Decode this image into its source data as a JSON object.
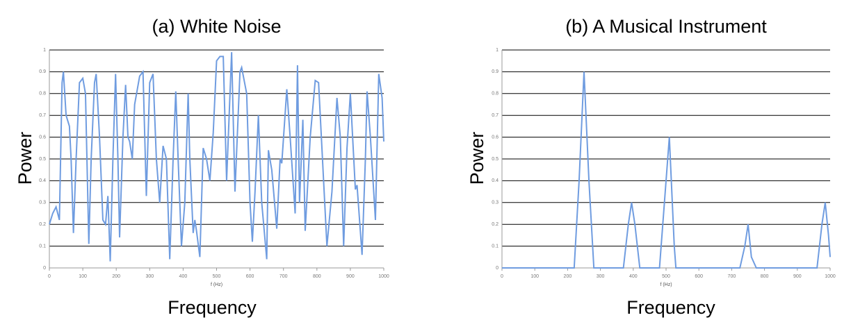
{
  "chart_data": [
    {
      "type": "line",
      "title": "(a)  White Noise",
      "ylabel": "Power",
      "xlabel": "f (Hz)",
      "caption": "Frequency",
      "color": "#6f9ce0",
      "grid": true,
      "xlim": [
        0,
        1000
      ],
      "ylim": [
        0,
        1
      ],
      "xticks": [
        0,
        100,
        200,
        300,
        400,
        500,
        600,
        700,
        800,
        900,
        1000
      ],
      "yticks": [
        0,
        0.1,
        0.2,
        0.3,
        0.4,
        0.5,
        0.6,
        0.7,
        0.8,
        0.9,
        1
      ],
      "x": [
        0,
        10,
        20,
        30,
        38,
        42,
        50,
        60,
        65,
        72,
        80,
        90,
        100,
        108,
        118,
        125,
        135,
        140,
        150,
        160,
        168,
        175,
        182,
        190,
        198,
        205,
        210,
        220,
        228,
        235,
        240,
        248,
        255,
        270,
        280,
        290,
        300,
        310,
        320,
        330,
        340,
        350,
        360,
        370,
        378,
        385,
        395,
        405,
        415,
        420,
        430,
        435,
        440,
        450,
        460,
        470,
        480,
        490,
        500,
        510,
        520,
        530,
        545,
        555,
        570,
        575,
        590,
        600,
        607,
        615,
        625,
        635,
        650,
        655,
        665,
        680,
        690,
        695,
        710,
        720,
        735,
        742,
        748,
        758,
        765,
        780,
        795,
        805,
        820,
        830,
        845,
        860,
        870,
        880,
        890,
        900,
        915,
        920,
        935,
        945,
        950,
        960,
        975,
        985,
        995,
        1000
      ],
      "values": [
        0.2,
        0.25,
        0.28,
        0.22,
        0.85,
        0.9,
        0.7,
        0.65,
        0.5,
        0.16,
        0.5,
        0.85,
        0.87,
        0.8,
        0.11,
        0.5,
        0.85,
        0.89,
        0.6,
        0.22,
        0.2,
        0.33,
        0.03,
        0.5,
        0.89,
        0.5,
        0.14,
        0.6,
        0.84,
        0.6,
        0.58,
        0.5,
        0.75,
        0.88,
        0.9,
        0.33,
        0.85,
        0.89,
        0.5,
        0.3,
        0.56,
        0.5,
        0.04,
        0.5,
        0.81,
        0.5,
        0.1,
        0.3,
        0.8,
        0.5,
        0.16,
        0.22,
        0.17,
        0.05,
        0.55,
        0.5,
        0.4,
        0.62,
        0.95,
        0.97,
        0.97,
        0.4,
        0.99,
        0.35,
        0.9,
        0.92,
        0.8,
        0.3,
        0.12,
        0.35,
        0.7,
        0.3,
        0.04,
        0.54,
        0.45,
        0.18,
        0.5,
        0.48,
        0.82,
        0.6,
        0.25,
        0.93,
        0.3,
        0.68,
        0.17,
        0.6,
        0.86,
        0.85,
        0.4,
        0.1,
        0.35,
        0.78,
        0.6,
        0.1,
        0.55,
        0.8,
        0.36,
        0.38,
        0.06,
        0.5,
        0.81,
        0.6,
        0.22,
        0.89,
        0.78,
        0.58
      ]
    },
    {
      "type": "line",
      "title": "(b)  A Musical Instrument",
      "ylabel": "Power",
      "xlabel": "f (Hz)",
      "caption": "Frequency",
      "color": "#6f9ce0",
      "grid": true,
      "xlim": [
        0,
        1000
      ],
      "ylim": [
        0,
        1
      ],
      "xticks": [
        0,
        100,
        200,
        300,
        400,
        500,
        600,
        700,
        800,
        900,
        1000
      ],
      "yticks": [
        0,
        0.1,
        0.2,
        0.3,
        0.4,
        0.5,
        0.6,
        0.7,
        0.8,
        0.9,
        1
      ],
      "x": [
        0,
        220,
        235,
        250,
        265,
        280,
        370,
        385,
        395,
        405,
        420,
        480,
        495,
        510,
        525,
        530,
        725,
        740,
        750,
        760,
        775,
        960,
        975,
        985,
        995,
        1000
      ],
      "values": [
        0,
        0,
        0.4,
        0.9,
        0.4,
        0,
        0,
        0.2,
        0.3,
        0.2,
        0,
        0,
        0.3,
        0.6,
        0.1,
        0,
        0,
        0.1,
        0.2,
        0.05,
        0,
        0,
        0.2,
        0.3,
        0.15,
        0.05
      ]
    }
  ]
}
